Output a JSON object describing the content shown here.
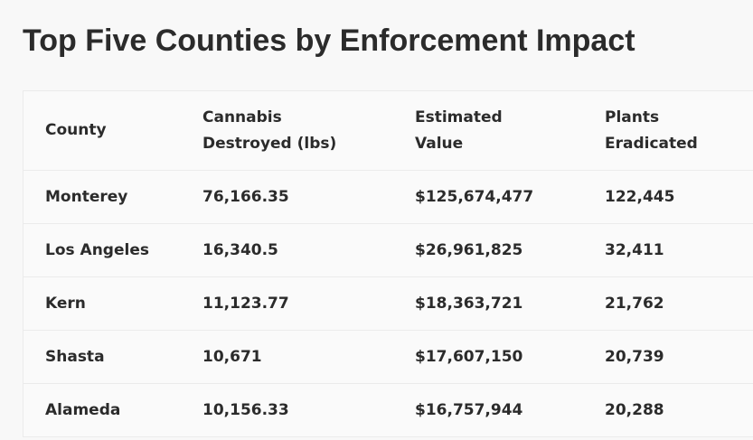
{
  "title": "Top Five Counties by Enforcement Impact",
  "table": {
    "headers": [
      [
        "County"
      ],
      [
        "Cannabis",
        "Destroyed (lbs)"
      ],
      [
        "Estimated",
        "Value"
      ],
      [
        "Plants",
        "Eradicated"
      ]
    ],
    "rows": [
      [
        "Monterey",
        "76,166.35",
        "$125,674,477",
        "122,445"
      ],
      [
        "Los Angeles",
        "16,340.5",
        "$26,961,825",
        "32,411"
      ],
      [
        "Kern",
        "11,123.77",
        "$18,363,721",
        "21,762"
      ],
      [
        "Shasta",
        "10,671",
        "$17,607,150",
        "20,739"
      ],
      [
        "Alameda",
        "10,156.33",
        "$16,757,944",
        "20,288"
      ]
    ]
  }
}
